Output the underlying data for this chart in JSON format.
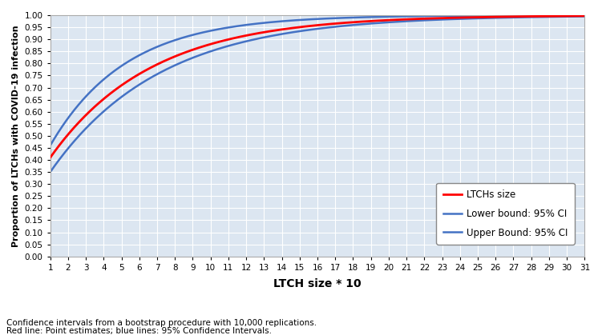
{
  "xlabel": "LTCH size * 10",
  "ylabel": "Proportion of LTCHs with COVID-19 infection",
  "x_min": 1,
  "x_max": 31,
  "y_min": 0.0,
  "y_max": 1.0,
  "x_ticks": [
    1,
    2,
    3,
    4,
    5,
    6,
    7,
    8,
    9,
    10,
    11,
    12,
    13,
    14,
    15,
    16,
    17,
    18,
    19,
    20,
    21,
    22,
    23,
    24,
    25,
    26,
    27,
    28,
    29,
    30,
    31
  ],
  "y_ticks": [
    0.0,
    0.05,
    0.1,
    0.15,
    0.2,
    0.25,
    0.3,
    0.35,
    0.4,
    0.45,
    0.5,
    0.55,
    0.6,
    0.65,
    0.7,
    0.75,
    0.8,
    0.85,
    0.9,
    0.95,
    1.0
  ],
  "red_color": "#FF0000",
  "blue_color": "#4472C4",
  "background_color": "#DCE6F1",
  "grid_color": "#FFFFFF",
  "legend_entries": [
    "LTCHs size",
    "Lower bound: 95% CI",
    "Upper Bound: 95% CI"
  ],
  "footnote1": "Confidence intervals from a bootstrap procedure with 10,000 replications.",
  "footnote2": "Red line: Point estimates; blue lines: 95% Confidence Intervals.",
  "red_a": 0.59,
  "red_k": 0.155,
  "upper_a": 0.54,
  "upper_k": 0.175,
  "lower_a": 0.65,
  "lower_k": 0.138
}
